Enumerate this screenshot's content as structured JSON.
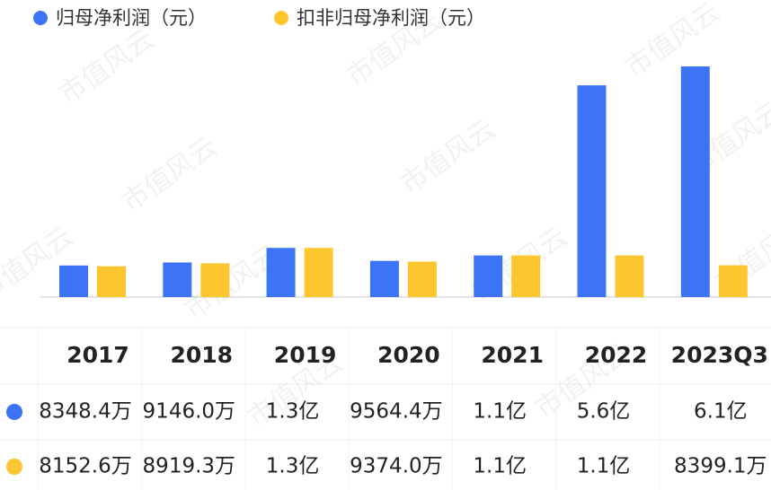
{
  "chart_data": {
    "type": "bar",
    "watermark": "市值风云",
    "categories": [
      "2017",
      "2018",
      "2019",
      "2020",
      "2021",
      "2022",
      "2023Q3"
    ],
    "series": [
      {
        "name": "归母净利润（元）",
        "color": "#3d74f5",
        "values": [
          83484000,
          91460000,
          130000000,
          95644000,
          110000000,
          560000000,
          610000000
        ],
        "value_labels": [
          "8348.4万",
          "9146.0万",
          "1.3亿",
          "9564.4万",
          "1.1亿",
          "5.6亿",
          "6.1亿"
        ]
      },
      {
        "name": "扣非归母净利润（元）",
        "color": "#fdc62e",
        "values": [
          81526000,
          89193000,
          130000000,
          93740000,
          110000000,
          110000000,
          83991000
        ],
        "value_labels": [
          "8152.6万",
          "8919.3万",
          "1.3亿",
          "9374.0万",
          "1.1亿",
          "1.1亿",
          "8399.1万"
        ]
      }
    ]
  }
}
